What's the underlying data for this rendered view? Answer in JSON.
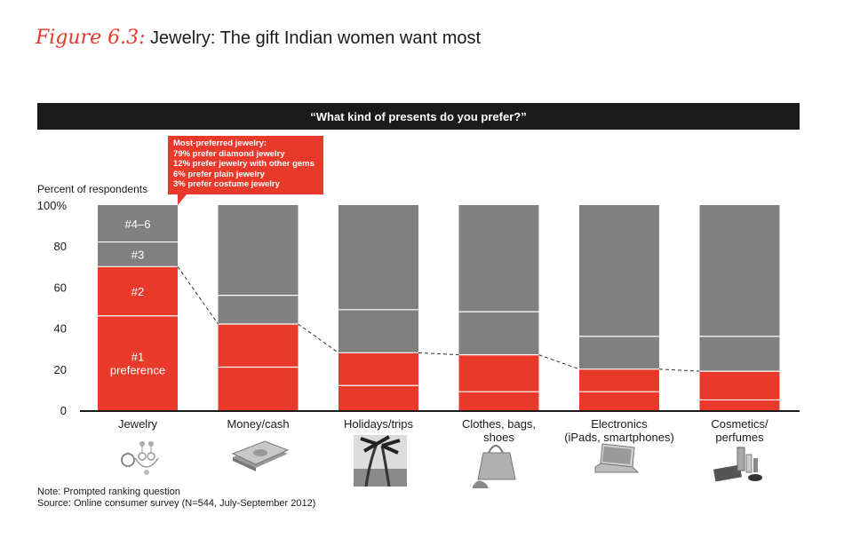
{
  "figure": {
    "label": "Figure 6.3:",
    "title": "Jewelry: The gift Indian women want most"
  },
  "question": "“What kind of presents do you prefer?”",
  "callout": {
    "heading": "Most-preferred jewelry:",
    "lines": [
      "79% prefer diamond jewelry",
      "12% prefer jewelry with other gems",
      "6% prefer plain jewelry",
      "3% prefer costume jewelry"
    ]
  },
  "notes": {
    "note": "Note: Prompted ranking question",
    "source": "Source: Online consumer survey (N=544, July-September 2012)"
  },
  "icons": [
    "jewelry-icon",
    "money-icon",
    "palm-beach-icon",
    "handbag-shoes-icon",
    "laptop-icon",
    "cosmetics-icon"
  ],
  "colors": {
    "accent": "#e8392b",
    "gray": "#808080",
    "dark": "#1a1a1a"
  },
  "chart_data": {
    "type": "bar",
    "stacked": true,
    "ylabel": "Percent of respondents",
    "ylim": [
      0,
      100
    ],
    "yticks": [
      "0",
      "20",
      "40",
      "60",
      "80",
      "100%"
    ],
    "categories": [
      "Jewelry",
      "Money/cash",
      "Holidays/trips",
      "Clothes, bags,\nshoes",
      "Electronics\n(iPads, smartphones)",
      "Cosmetics/\nperfumes"
    ],
    "series": [
      {
        "name": "#1 preference",
        "color": "#e8392b",
        "values": [
          46,
          21,
          12,
          9,
          9,
          5
        ]
      },
      {
        "name": "#2",
        "color": "#e8392b",
        "values": [
          24,
          21,
          16,
          18,
          11,
          14
        ]
      },
      {
        "name": "#3",
        "color": "#808080",
        "values": [
          12,
          14,
          21,
          21,
          16,
          17
        ]
      },
      {
        "name": "#4–6",
        "color": "#808080",
        "values": [
          18,
          44,
          51,
          52,
          64,
          64
        ]
      }
    ],
    "segment_labels": [
      "#1\npreference",
      "#2",
      "#3",
      "#4–6"
    ],
    "legend": "none",
    "grid": false
  }
}
